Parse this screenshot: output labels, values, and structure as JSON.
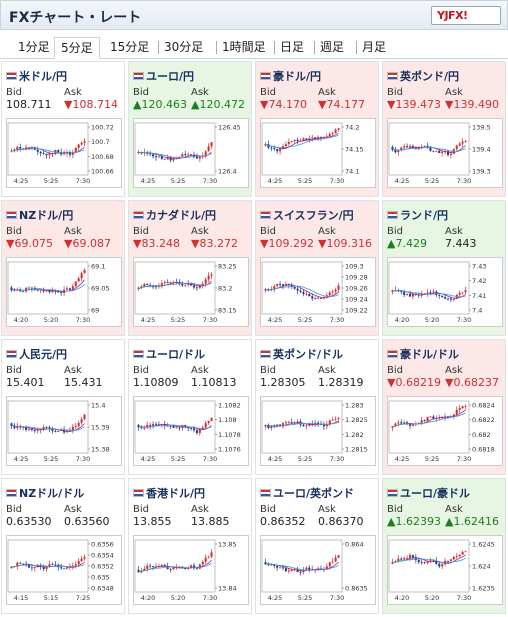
{
  "header": {
    "title": "FXチャート・レート",
    "logo": "YJFX!"
  },
  "tabs": [
    "1分足",
    "5分足",
    "15分足",
    "30分足",
    "1時間足",
    "日足",
    "週足",
    "月足"
  ],
  "active_tab": 1,
  "labels": {
    "bid": "Bid",
    "ask": "Ask"
  },
  "pairs": [
    {
      "name": "米ドル/円",
      "bid": "108.711",
      "ask": "108.714",
      "bid_dir": "flat",
      "ask_dir": "down",
      "state": "neu",
      "yt": [
        "100.72",
        "100.7",
        "100.68",
        "100.66"
      ],
      "xt": [
        "4:25",
        "5:25",
        "7:30"
      ]
    },
    {
      "name": "ユーロ/円",
      "bid": "120.463",
      "ask": "120.472",
      "bid_dir": "up",
      "ask_dir": "up",
      "state": "pos",
      "yt": [
        "126.45",
        "126.4"
      ],
      "xt": [
        "4:25",
        "5:25",
        "7:30"
      ]
    },
    {
      "name": "豪ドル/円",
      "bid": "74.170",
      "ask": "74.177",
      "bid_dir": "down",
      "ask_dir": "down",
      "state": "neg",
      "yt": [
        "74.2",
        "74.15",
        "74.1"
      ],
      "xt": [
        "4:25",
        "5:25",
        "7:30"
      ]
    },
    {
      "name": "英ポンド/円",
      "bid": "139.473",
      "ask": "139.490",
      "bid_dir": "down",
      "ask_dir": "down",
      "state": "neg",
      "yt": [
        "139.5",
        "139.4",
        "139.3"
      ],
      "xt": [
        "4:25",
        "5:25",
        "7:30"
      ]
    },
    {
      "name": "NZドル/円",
      "bid": "69.075",
      "ask": "69.087",
      "bid_dir": "down",
      "ask_dir": "down",
      "state": "neg",
      "yt": [
        "69.1",
        "69.05",
        "69"
      ],
      "xt": [
        "4:20",
        "5:20",
        "7:30"
      ]
    },
    {
      "name": "カナダドル/円",
      "bid": "83.248",
      "ask": "83.272",
      "bid_dir": "down",
      "ask_dir": "down",
      "state": "neg",
      "yt": [
        "83.25",
        "83.2",
        "83.15"
      ],
      "xt": [
        "4:25",
        "5:25",
        "7:30"
      ]
    },
    {
      "name": "スイスフラン/円",
      "bid": "109.292",
      "ask": "109.316",
      "bid_dir": "down",
      "ask_dir": "down",
      "state": "neg",
      "yt": [
        "109.3",
        "109.28",
        "109.26",
        "109.24",
        "109.22"
      ],
      "xt": [
        "4:25",
        "5:25",
        "7:30"
      ]
    },
    {
      "name": "ランド/円",
      "bid": "7.429",
      "ask": "7.443",
      "bid_dir": "up",
      "ask_dir": "flat",
      "state": "pos",
      "yt": [
        "7.43",
        "7.42",
        "7.41",
        "7.4"
      ],
      "xt": [
        "4:20",
        "5:20",
        "7:30"
      ]
    },
    {
      "name": "人民元/円",
      "bid": "15.401",
      "ask": "15.431",
      "bid_dir": "flat",
      "ask_dir": "flat",
      "state": "neu",
      "yt": [
        "15.4",
        "15.39",
        "15.38"
      ],
      "xt": [
        "4:25",
        "5:25",
        "7:30"
      ]
    },
    {
      "name": "ユーロ/ドル",
      "bid": "1.10809",
      "ask": "1.10813",
      "bid_dir": "flat",
      "ask_dir": "flat",
      "state": "neu",
      "yt": [
        "1.1082",
        "1.108",
        "1.1078",
        "1.1076"
      ],
      "xt": [
        "4:25",
        "5:25",
        "7:30"
      ]
    },
    {
      "name": "英ポンド/ドル",
      "bid": "1.28305",
      "ask": "1.28319",
      "bid_dir": "flat",
      "ask_dir": "flat",
      "state": "neu",
      "yt": [
        "1.283",
        "1.2825",
        "1.282",
        "1.2815"
      ],
      "xt": [
        "4:25",
        "5:25",
        "7:30"
      ]
    },
    {
      "name": "豪ドル/ドル",
      "bid": "0.68219",
      "ask": "0.68237",
      "bid_dir": "down",
      "ask_dir": "down",
      "state": "neg",
      "yt": [
        "0.6824",
        "0.6822",
        "0.682",
        "0.6818"
      ],
      "xt": [
        "4:25",
        "5:25",
        "7:30"
      ]
    },
    {
      "name": "NZドル/ドル",
      "bid": "0.63530",
      "ask": "0.63560",
      "bid_dir": "flat",
      "ask_dir": "flat",
      "state": "neu",
      "yt": [
        "0.6356",
        "0.6354",
        "0.6352",
        "0.635",
        "0.6348"
      ],
      "xt": [
        "4:15",
        "5:15",
        "7:25"
      ]
    },
    {
      "name": "香港ドル/円",
      "bid": "13.855",
      "ask": "13.885",
      "bid_dir": "flat",
      "ask_dir": "flat",
      "state": "neu",
      "yt": [
        "13.85",
        "13.84"
      ],
      "xt": [
        "4:20",
        "5:20",
        "7:30"
      ]
    },
    {
      "name": "ユーロ/英ポンド",
      "bid": "0.86352",
      "ask": "0.86370",
      "bid_dir": "flat",
      "ask_dir": "flat",
      "state": "neu",
      "yt": [
        "0.864",
        "0.8635"
      ],
      "xt": [
        "4:25",
        "5:25",
        "7:30"
      ]
    },
    {
      "name": "ユーロ/豪ドル",
      "bid": "1.62393",
      "ask": "1.62416",
      "bid_dir": "up",
      "ask_dir": "up",
      "state": "pos",
      "yt": [
        "1.6245",
        "1.624",
        "1.6235"
      ],
      "xt": [
        "4:20",
        "5:20",
        "7:30"
      ]
    }
  ],
  "colors": {
    "candle_up": "#d0302f",
    "candle_down": "#1d3a8a",
    "ma_line": "#b01c9c",
    "ma_line2": "#2aa6c9"
  }
}
